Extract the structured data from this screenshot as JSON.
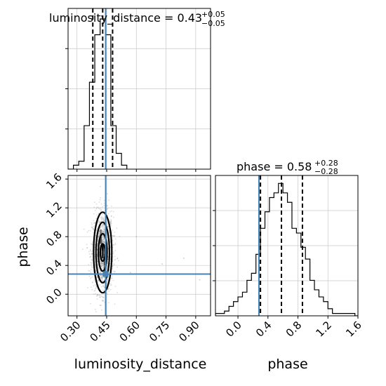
{
  "chart_data": {
    "type": "corner",
    "parameters": [
      "luminosity_distance",
      "phase"
    ],
    "grid": true,
    "truth_color": "#4682b4",
    "truths": {
      "luminosity_distance": 0.445,
      "phase": 0.28
    },
    "panels": [
      {
        "type": "histogram",
        "parameter": "luminosity_distance",
        "title_name": "luminosity_distance",
        "title_value": "0.43",
        "title_plus": "+0.05",
        "title_minus": "−0.05",
        "quantiles": [
          0.38,
          0.43,
          0.48
        ],
        "xlim": [
          0.255,
          0.975
        ],
        "xticks": [
          0.3,
          0.45,
          0.6,
          0.75,
          0.9
        ],
        "bin_edges": [
          0.255,
          0.282,
          0.309,
          0.336,
          0.363,
          0.39,
          0.417,
          0.444,
          0.471,
          0.498,
          0.525,
          0.552
        ],
        "counts": [
          0,
          1,
          2,
          11,
          22,
          34,
          38,
          34,
          11,
          4,
          1
        ]
      },
      {
        "type": "histogram",
        "parameter": "phase",
        "title_name": "phase",
        "title_value": "0.58",
        "title_plus": "+0.28",
        "title_minus": "−0.28",
        "quantiles": [
          0.3,
          0.58,
          0.86
        ],
        "xlim": [
          -0.3,
          1.6
        ],
        "xticks": [
          "0.0",
          "0.4",
          "0.8",
          "1.2",
          "1.6"
        ],
        "xtick_values": [
          0,
          0.4,
          0.8,
          1.2,
          1.6
        ],
        "xlabel": "phase",
        "bin_edges": [
          -0.3,
          -0.24,
          -0.18,
          -0.12,
          -0.06,
          0.0,
          0.06,
          0.12,
          0.18,
          0.24,
          0.3,
          0.36,
          0.42,
          0.48,
          0.54,
          0.6,
          0.66,
          0.72,
          0.78,
          0.84,
          0.9,
          0.96,
          1.02,
          1.08,
          1.14,
          1.2,
          1.26,
          1.32,
          1.38,
          1.44,
          1.5,
          1.56,
          1.6
        ],
        "counts": [
          1,
          1,
          2,
          4,
          6,
          8,
          10,
          15,
          18,
          26,
          37,
          44,
          50,
          52,
          56,
          52,
          48,
          37,
          35,
          29,
          24,
          15,
          11,
          8,
          6,
          3,
          1,
          1,
          1,
          1,
          1,
          0
        ]
      },
      {
        "type": "scatter_2d",
        "x_parameter": "luminosity_distance",
        "y_parameter": "phase",
        "xlabel": "luminosity_distance",
        "ylabel": "phase",
        "xlim": [
          0.255,
          0.975
        ],
        "ylim": [
          -0.3,
          1.65
        ],
        "xticks": [
          "0.30",
          "0.45",
          "0.60",
          "0.75",
          "0.90"
        ],
        "xtick_values": [
          0.3,
          0.45,
          0.6,
          0.75,
          0.9
        ],
        "yticks": [
          "0.0",
          "0.4",
          "0.8",
          "1.2",
          "1.6"
        ],
        "ytick_values": [
          0,
          0.4,
          0.8,
          1.2,
          1.6
        ],
        "center": [
          0.43,
          0.58
        ],
        "contour_levels": [
          {
            "rx": 0.012,
            "ry": 0.12
          },
          {
            "rx": 0.022,
            "ry": 0.26
          },
          {
            "rx": 0.034,
            "ry": 0.42
          },
          {
            "rx": 0.046,
            "ry": 0.56
          }
        ],
        "density_cells": [
          {
            "x": 0.43,
            "y": 0.65,
            "shade": 0.95
          },
          {
            "x": 0.43,
            "y": 0.55,
            "shade": 0.85
          },
          {
            "x": 0.42,
            "y": 0.75,
            "shade": 0.7
          },
          {
            "x": 0.44,
            "y": 0.45,
            "shade": 0.7
          },
          {
            "x": 0.42,
            "y": 0.85,
            "shade": 0.5
          },
          {
            "x": 0.44,
            "y": 0.35,
            "shade": 0.5
          }
        ]
      }
    ]
  }
}
